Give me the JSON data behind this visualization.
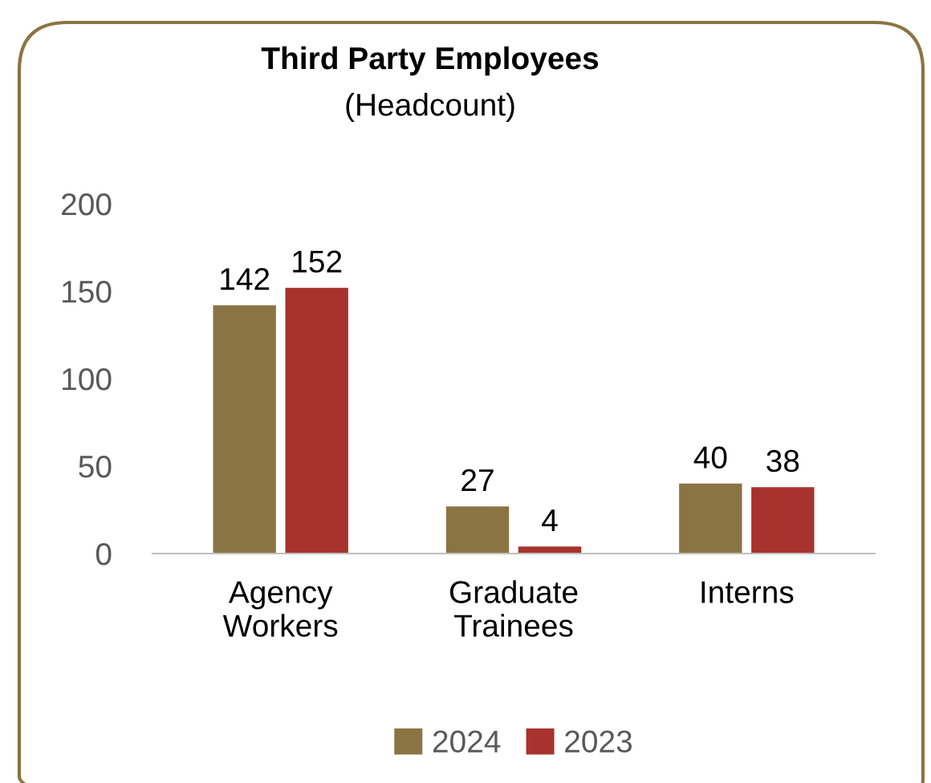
{
  "chart_data": {
    "type": "bar",
    "title": "Third Party Employees",
    "subtitle": "(Headcount)",
    "categories": [
      "Agency\nWorkers",
      "Graduate\nTrainees",
      "Interns"
    ],
    "series": [
      {
        "name": "2024",
        "color": "#8b7444",
        "values": [
          142,
          27,
          40
        ]
      },
      {
        "name": "2023",
        "color": "#a8322d",
        "values": [
          152,
          4,
          38
        ]
      }
    ],
    "ylim": [
      0,
      200
    ],
    "yticks": [
      0,
      50,
      100,
      150,
      200
    ],
    "grid": false,
    "legend": "bottom",
    "data_labels": true
  }
}
